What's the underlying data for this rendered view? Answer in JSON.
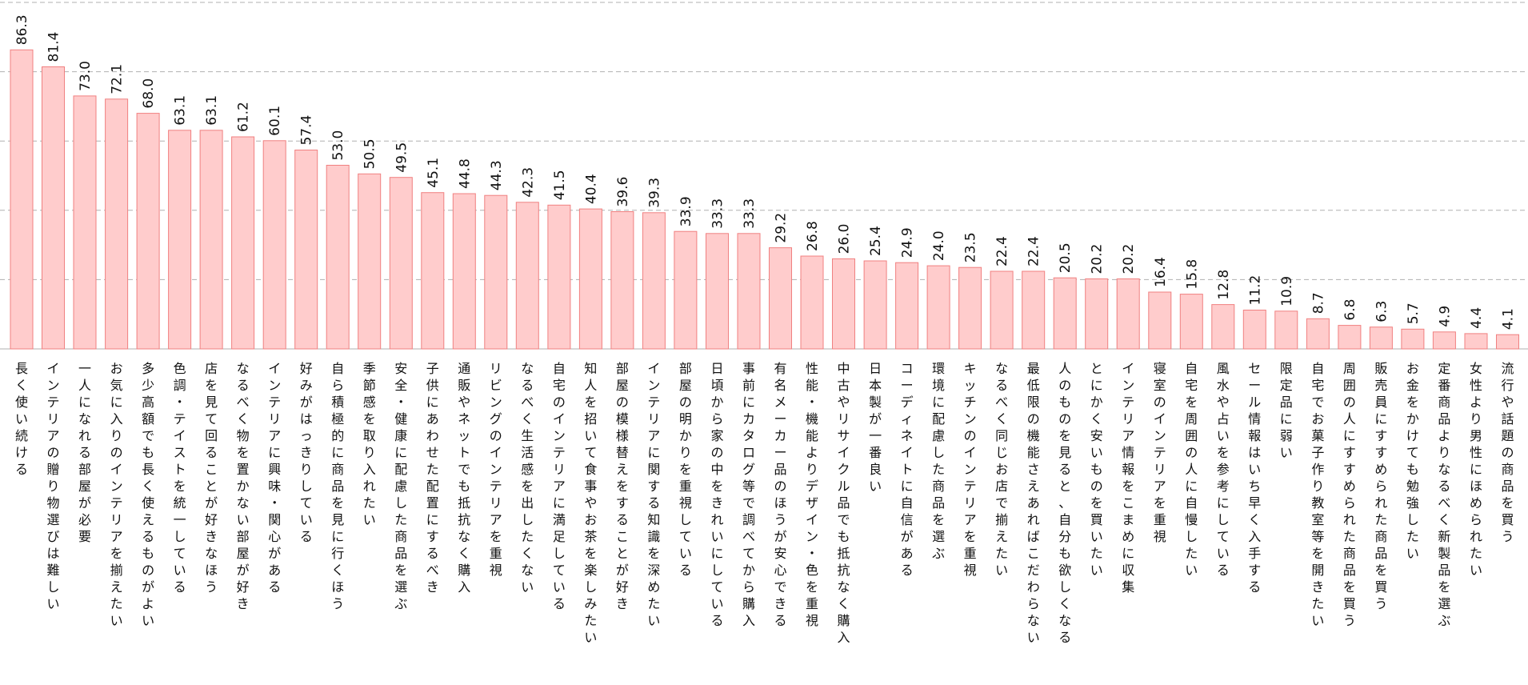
{
  "chart_data": {
    "type": "bar",
    "categories": [
      "長く使い続ける",
      "インテリアの贈り物選びは難しい",
      "一人になれる部屋が必要",
      "お気に入りのインテリアを揃えたい",
      "多少高額でも長く使えるものがよい",
      "色調・テイストを統一している",
      "店を見て回ることが好きなほう",
      "なるべく物を置かない部屋が好き",
      "インテリアに興味・関心がある",
      "好みがはっきりしている",
      "自ら積極的に商品を見に行くほう",
      "季節感を取り入れたい",
      "安全・健康に配慮した商品を選ぶ",
      "子供にあわせた配置にするべき",
      "通販やネットでも抵抗なく購入",
      "リビングのインテリアを重視",
      "なるべく生活感を出したくない",
      "自宅のインテリアに満足している",
      "知人を招いて食事やお茶を楽しみたい",
      "部屋の模様替えをすることが好き",
      "インテリアに関する知識を深めたい",
      "部屋の明かりを重視している",
      "日頃から家の中をきれいにしている",
      "事前にカタログ等で調べてから購入",
      "有名メーカー品のほうが安心できる",
      "性能・機能よりデザイン・色を重視",
      "中古やリサイクル品でも抵抗なく購入",
      "日本製が一番良い",
      "コーディネイトに自信がある",
      "環境に配慮した商品を選ぶ",
      "キッチンのインテリアを重視",
      "なるべく同じお店で揃えたい",
      "最低限の機能さえあればこだわらない",
      "人のものを見ると、自分も欲しくなる",
      "とにかく安いものを買いたい",
      "インテリア情報をこまめに収集",
      "寝室のインテリアを重視",
      "自宅を周囲の人に自慢したい",
      "風水や占いを参考にしている",
      "セール情報はいち早く入手する",
      "限定品に弱い",
      "自宅でお菓子作り教室等を開きたい",
      "周囲の人にすすめられた商品を買う",
      "販売員にすすめられた商品を買う",
      "お金をかけても勉強したい",
      "定番商品よりなるべく新製品を選ぶ",
      "女性より男性にほめられたい",
      "流行や話題の商品を買う"
    ],
    "values": [
      86.3,
      81.4,
      73.0,
      72.1,
      68.0,
      63.1,
      63.1,
      61.2,
      60.1,
      57.4,
      53.0,
      50.5,
      49.5,
      45.1,
      44.8,
      44.3,
      42.3,
      41.5,
      40.4,
      39.6,
      39.3,
      33.9,
      33.3,
      33.3,
      29.2,
      26.8,
      26.0,
      25.4,
      24.9,
      24.0,
      23.5,
      22.4,
      22.4,
      20.5,
      20.2,
      20.2,
      16.4,
      15.8,
      12.8,
      11.2,
      10.9,
      8.7,
      6.8,
      6.3,
      5.7,
      4.9,
      4.4,
      4.1
    ],
    "value_labels": [
      "86.3",
      "81.4",
      "73.0",
      "72.1",
      "68.0",
      "63.1",
      "63.1",
      "61.2",
      "60.1",
      "57.4",
      "53.0",
      "50.5",
      "49.5",
      "45.1",
      "44.8",
      "44.3",
      "42.3",
      "41.5",
      "40.4",
      "39.6",
      "39.3",
      "33.9",
      "33.3",
      "33.3",
      "29.2",
      "26.8",
      "26.0",
      "25.4",
      "24.9",
      "24.0",
      "23.5",
      "22.4",
      "22.4",
      "20.5",
      "20.2",
      "20.2",
      "16.4",
      "15.8",
      "12.8",
      "11.2",
      "10.9",
      "8.7",
      "6.8",
      "6.3",
      "5.7",
      "4.9",
      "4.4",
      "4.1"
    ],
    "ylim": [
      0,
      100
    ],
    "grid": true,
    "grid_style": "dashed",
    "bar_fill": "#ffcccc",
    "bar_stroke": "#f08080",
    "grid_color": "#b0b0b0",
    "label_orientation": "vertical"
  }
}
